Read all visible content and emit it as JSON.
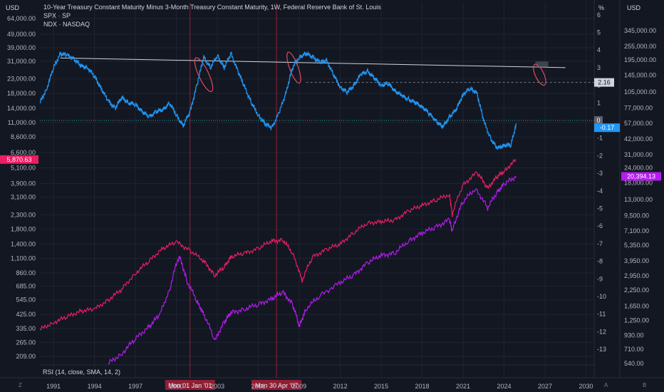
{
  "header": {
    "title": "10-Year Treasury Constant Maturity Minus 3-Month Treasury Constant Maturity, 1W, Federal Reserve Bank of St. Louis",
    "series2": "SPX · SP",
    "series3": "NDX · NASDAQ",
    "left_unit": "USD",
    "mid_unit": "%",
    "right_unit": "USD"
  },
  "indicator": {
    "label": "RSI (14, close, SMA, 14, 2)"
  },
  "bottom_bar": {
    "left_glyph": "Z",
    "mid_glyph": "A",
    "right_glyph": "B"
  },
  "colors": {
    "background": "#131722",
    "spread": "#2196f3",
    "spx": "#e91e63",
    "ndx": "#b41cf0",
    "grid": "#1f2430",
    "vline": "#b4233a",
    "trend": "#d1d4dc",
    "zero_line": "#26a69a"
  },
  "chart_data": {
    "type": "line",
    "title": "10-Year Treasury Constant Maturity Minus 3-Month Treasury Constant Maturity, 1W, Federal Reserve Bank of St. Louis",
    "x_ticks": [
      "1991",
      "1994",
      "1997",
      "2000",
      "2003",
      "2006",
      "2009",
      "2012",
      "2015",
      "2018",
      "2021",
      "2024",
      "2027",
      "2030"
    ],
    "vline_labels": [
      "Mon 01 Jan '01",
      "Mon 30 Apr '07"
    ],
    "left_axis_ticks": [
      "64,000.00",
      "49,000.00",
      "39,000.00",
      "31,000.00",
      "23,000.00",
      "18,000.00",
      "14,000.00",
      "11,000.00",
      "8,600.00",
      "6,600.00",
      "5,100.00",
      "3,900.00",
      "3,100.00",
      "2,300.00",
      "1,800.00",
      "1,400.00",
      "1,100.00",
      "860.00",
      "685.00",
      "545.00",
      "425.00",
      "335.00",
      "265.00",
      "209.00"
    ],
    "mid_axis_ticks": [
      "6",
      "5",
      "4",
      "3",
      "2",
      "1",
      "0",
      "-1",
      "-2",
      "-3",
      "-4",
      "-5",
      "-6",
      "-7",
      "-8",
      "-9",
      "-10",
      "-11",
      "-12",
      "-13"
    ],
    "right_axis_ticks": [
      "345,000.00",
      "255,000.00",
      "195,000.00",
      "145,000.00",
      "105,000.00",
      "77,000.00",
      "57,000.00",
      "42,000.00",
      "31,000.00",
      "24,000.00",
      "18,000.00",
      "13,000.00",
      "9,500.00",
      "7,100.00",
      "5,350.00",
      "3,950.00",
      "2,950.00",
      "2,250.00",
      "1,650.00",
      "1,250.00",
      "930.00",
      "710.00",
      "540.00"
    ],
    "last_value_labels": {
      "spx": "5,870.63",
      "spread_level": "2.16",
      "spread_zero": "0",
      "spread_last": "-0.17",
      "ndx": "20,394.13"
    },
    "series": [
      {
        "name": "10-Year Treasury Constant Maturity Minus 3-Month Treasury Constant Maturity",
        "axis": "percent",
        "x": [
          1990.0,
          1990.5,
          1991.0,
          1991.5,
          1992.0,
          1992.5,
          1993.0,
          1993.5,
          1994.0,
          1994.5,
          1995.0,
          1995.5,
          1996.0,
          1996.5,
          1997.0,
          1997.5,
          1998.0,
          1998.5,
          1999.0,
          1999.5,
          2000.0,
          2000.5,
          2001.0,
          2001.5,
          2002.0,
          2002.5,
          2003.0,
          2003.5,
          2004.0,
          2004.5,
          2005.0,
          2005.5,
          2006.0,
          2006.5,
          2007.0,
          2007.5,
          2008.0,
          2008.5,
          2009.0,
          2009.5,
          2010.0,
          2010.5,
          2011.0,
          2011.5,
          2012.0,
          2012.5,
          2013.0,
          2013.5,
          2014.0,
          2014.5,
          2015.0,
          2015.5,
          2016.0,
          2016.5,
          2017.0,
          2017.5,
          2018.0,
          2018.5,
          2019.0,
          2019.5,
          2020.0,
          2020.5,
          2021.0,
          2021.5,
          2022.0,
          2022.5,
          2023.0,
          2023.5,
          2024.0,
          2024.5,
          2024.9
        ],
        "y": [
          1.0,
          1.8,
          3.0,
          3.8,
          3.7,
          3.5,
          3.1,
          3.0,
          2.5,
          1.8,
          1.1,
          0.7,
          1.3,
          1.0,
          0.9,
          0.5,
          0.2,
          0.5,
          0.6,
          1.0,
          0.3,
          -0.3,
          0.5,
          2.0,
          3.6,
          3.0,
          3.7,
          3.0,
          3.8,
          2.8,
          1.9,
          1.0,
          0.3,
          -0.2,
          -0.4,
          0.4,
          1.5,
          3.0,
          3.6,
          3.8,
          3.6,
          3.3,
          3.4,
          2.6,
          1.9,
          1.6,
          2.0,
          2.6,
          2.8,
          2.4,
          2.0,
          2.1,
          1.7,
          1.4,
          1.2,
          1.0,
          0.8,
          0.4,
          0.0,
          -0.4,
          0.2,
          0.6,
          1.5,
          1.8,
          1.6,
          0.0,
          -1.0,
          -1.6,
          -1.4,
          -1.4,
          -0.17
        ]
      },
      {
        "name": "SPX",
        "axis": "left",
        "x": [
          1990.0,
          1991.0,
          1992.0,
          1993.0,
          1994.0,
          1995.0,
          1996.0,
          1997.0,
          1998.0,
          1999.0,
          2000.0,
          2001.0,
          2002.0,
          2002.8,
          2003.5,
          2004.0,
          2005.0,
          2006.0,
          2007.0,
          2007.8,
          2008.5,
          2009.2,
          2010.0,
          2011.0,
          2012.0,
          2013.0,
          2014.0,
          2015.0,
          2016.0,
          2017.0,
          2018.0,
          2019.0,
          2020.0,
          2020.2,
          2021.0,
          2022.0,
          2022.8,
          2023.5,
          2024.0,
          2024.9
        ],
        "y": [
          330,
          370,
          410,
          450,
          465,
          540,
          650,
          850,
          1050,
          1300,
          1450,
          1250,
          1050,
          820,
          950,
          1130,
          1200,
          1300,
          1480,
          1500,
          1200,
          750,
          1130,
          1280,
          1400,
          1700,
          2000,
          2050,
          2100,
          2450,
          2700,
          2950,
          3250,
          2300,
          3800,
          4700,
          3600,
          4400,
          4800,
          5870.63
        ]
      },
      {
        "name": "NDX",
        "axis": "right",
        "x": [
          1995.0,
          1996.0,
          1997.0,
          1998.0,
          1998.8,
          1999.5,
          2000.2,
          2000.8,
          2001.5,
          2002.0,
          2002.8,
          2003.5,
          2004.0,
          2005.0,
          2006.0,
          2007.0,
          2007.8,
          2008.5,
          2009.0,
          2009.5,
          2010.5,
          2012.0,
          2013.0,
          2014.0,
          2015.0,
          2016.0,
          2017.0,
          2018.0,
          2019.0,
          2020.0,
          2020.2,
          2021.0,
          2021.9,
          2022.8,
          2023.5,
          2024.0,
          2024.9
        ],
        "y": [
          540,
          650,
          870,
          1100,
          1400,
          2200,
          4300,
          2600,
          1800,
          1400,
          830,
          1200,
          1450,
          1550,
          1700,
          1900,
          2150,
          1700,
          1100,
          1550,
          2000,
          2600,
          3000,
          3800,
          4400,
          4600,
          5800,
          6800,
          7600,
          8800,
          7000,
          12500,
          16000,
          11000,
          15000,
          17500,
          20394.13
        ]
      }
    ]
  }
}
